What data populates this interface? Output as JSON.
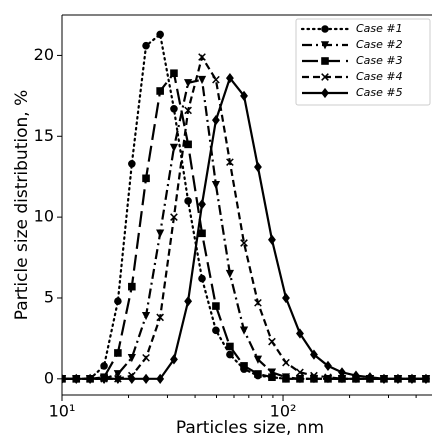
{
  "chart_data": {
    "type": "line",
    "xlabel": "Particles size, nm",
    "ylabel": "Particle size distribution, %",
    "xscale": "log",
    "xlim": [
      10,
      472
    ],
    "ylim": [
      -1,
      22.5
    ],
    "xticks": [
      {
        "value": 10,
        "label": "10¹"
      },
      {
        "value": 100,
        "label": "10²"
      }
    ],
    "xminor_ticks": [
      20,
      30,
      40,
      50,
      60,
      70,
      80,
      90,
      200,
      300,
      400
    ],
    "yticks": [
      0,
      5,
      10,
      15,
      20
    ],
    "legend": "upper right",
    "x": [
      10,
      11.6,
      13.4,
      15.5,
      17.9,
      20.7,
      24.0,
      27.8,
      32.1,
      37.2,
      43.0,
      49.7,
      57.5,
      66.6,
      77.0,
      89.1,
      103.1,
      119.3,
      138.0,
      159.7,
      184.8,
      213.8,
      247.3,
      286.2,
      331.1,
      383.1,
      443.2
    ],
    "series": [
      {
        "name": "Case #1",
        "color": "#000000",
        "marker": "circle",
        "linestyle": "dotted",
        "values": [
          0,
          0,
          0,
          0.8,
          4.8,
          13.3,
          20.6,
          21.3,
          16.7,
          11,
          6.2,
          3.0,
          1.5,
          0.6,
          0.2,
          0.1,
          0,
          0,
          0,
          0,
          0,
          0,
          0,
          0,
          0,
          0,
          0
        ]
      },
      {
        "name": "Case #2",
        "color": "#000000",
        "marker": "triangle-down",
        "linestyle": "dashdot",
        "values": [
          0,
          0,
          0,
          0,
          0.3,
          1.3,
          3.9,
          9.0,
          14.3,
          18.3,
          18.5,
          12.0,
          6.5,
          3.0,
          1.2,
          0.4,
          0.1,
          0,
          0,
          0,
          0,
          0,
          0,
          0,
          0,
          0,
          0
        ]
      },
      {
        "name": "Case #3",
        "color": "#000000",
        "marker": "square",
        "linestyle": "longdash",
        "values": [
          0,
          0,
          0,
          0.1,
          1.6,
          5.7,
          12.4,
          17.8,
          18.9,
          14.5,
          9.0,
          4.5,
          2.0,
          0.8,
          0.3,
          0.1,
          0,
          0,
          0,
          0,
          0,
          0,
          0,
          0,
          0,
          0,
          0
        ]
      },
      {
        "name": "Case #4",
        "color": "#000000",
        "marker": "x",
        "linestyle": "dashed",
        "values": [
          0,
          0,
          0,
          0,
          0,
          0.2,
          1.3,
          3.8,
          10,
          16.6,
          19.9,
          18.5,
          13.4,
          8.4,
          4.7,
          2.3,
          1.0,
          0.4,
          0.2,
          0.1,
          0,
          0,
          0,
          0,
          0,
          0,
          0
        ]
      },
      {
        "name": "Case #5",
        "color": "#000000",
        "marker": "diamond",
        "linestyle": "solid",
        "values": [
          0,
          0,
          0,
          0,
          0,
          0,
          0,
          0,
          1.2,
          4.8,
          10.8,
          16.0,
          18.6,
          17.5,
          13.1,
          8.6,
          5.0,
          2.8,
          1.5,
          0.8,
          0.4,
          0.2,
          0.1,
          0,
          0,
          0,
          0
        ]
      }
    ]
  }
}
